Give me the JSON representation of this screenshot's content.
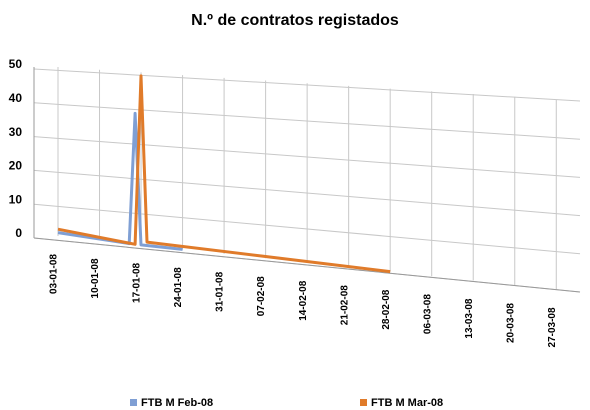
{
  "chart_data": {
    "type": "line",
    "title": "N.º de contratos registados",
    "xlim": [
      "03-01-08",
      "31-03-08"
    ],
    "xticks": [
      "03-01-08",
      "10-01-08",
      "17-01-08",
      "24-01-08",
      "31-01-08",
      "07-02-08",
      "14-02-08",
      "21-02-08",
      "28-02-08",
      "06-03-08",
      "13-03-08",
      "20-03-08",
      "27-03-08"
    ],
    "ylim": [
      0,
      50
    ],
    "yticks": [
      0,
      10,
      20,
      30,
      40,
      50
    ],
    "grid": true,
    "series": [
      {
        "name": "FTB M Feb-08",
        "color": "#7f9fd4",
        "x": [
          "03-01-08",
          "15-01-08",
          "16-01-08",
          "17-01-08",
          "24-01-08"
        ],
        "values": [
          1,
          0,
          38,
          0,
          0
        ]
      },
      {
        "name": "FTB M Mar-08",
        "color": "#e07b2a",
        "x": [
          "03-01-08",
          "16-01-08",
          "17-01-08",
          "18-01-08",
          "28-02-08"
        ],
        "values": [
          2,
          0,
          49,
          1,
          0
        ]
      }
    ]
  }
}
